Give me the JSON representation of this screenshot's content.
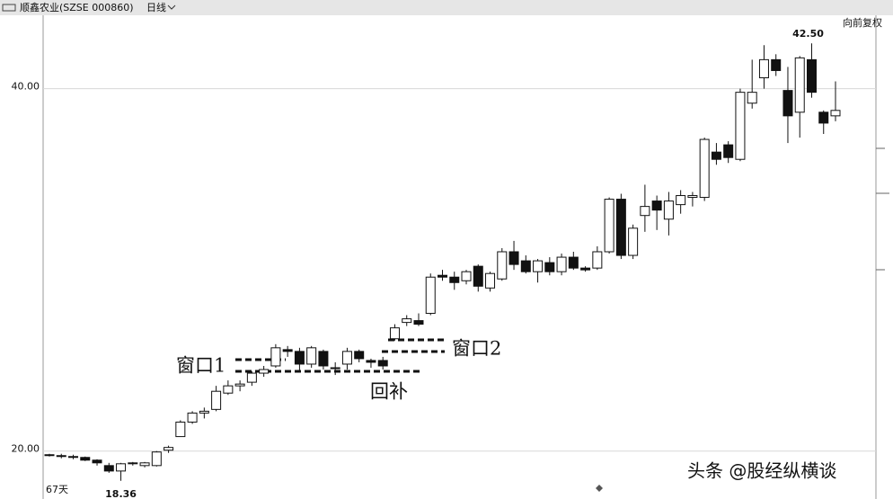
{
  "header": {
    "title": "顺鑫农业(SZSE 000860)",
    "period": "日线",
    "adjust": "向前复权"
  },
  "chart_data": {
    "type": "candlestick",
    "open": [
      19.8,
      19.75,
      19.7,
      19.65,
      19.5,
      19.2,
      18.9,
      19.3,
      19.2,
      19.2,
      20.05,
      20.8,
      21.6,
      22.1,
      22.3,
      23.2,
      23.6,
      23.8,
      24.3,
      24.7,
      25.6,
      25.5,
      24.8,
      25.5,
      24.6,
      24.8,
      25.5,
      25.0,
      25.0,
      26.2,
      27.1,
      27.2,
      27.6,
      29.7,
      29.6,
      29.4,
      30.2,
      29.0,
      29.5,
      31.0,
      30.5,
      29.9,
      30.4,
      29.9,
      30.7,
      30.1,
      30.1,
      31.0,
      33.9,
      30.8,
      33.0,
      33.8,
      32.8,
      33.6,
      34.0,
      34.0,
      36.5,
      36.9,
      36.1,
      39.2,
      40.6,
      41.6,
      39.9,
      38.7,
      41.6,
      38.7,
      38.5
    ],
    "high": [
      19.85,
      19.85,
      19.8,
      19.7,
      19.55,
      19.35,
      19.35,
      19.4,
      19.4,
      20.0,
      20.3,
      21.7,
      22.2,
      22.4,
      23.6,
      23.9,
      23.9,
      24.4,
      24.7,
      25.9,
      25.8,
      25.7,
      25.8,
      25.6,
      24.9,
      25.7,
      25.6,
      25.1,
      25.2,
      27.0,
      27.5,
      27.6,
      29.8,
      30.0,
      29.9,
      30.0,
      30.3,
      29.9,
      31.2,
      31.6,
      30.8,
      30.6,
      30.7,
      30.9,
      31.0,
      30.2,
      31.3,
      34.0,
      34.2,
      32.5,
      34.7,
      34.1,
      34.3,
      34.4,
      34.3,
      37.3,
      37.0,
      37.1,
      40.0,
      41.6,
      42.4,
      41.9,
      41.2,
      41.8,
      42.5,
      38.8,
      40.4
    ],
    "low": [
      19.7,
      19.6,
      19.55,
      19.45,
      19.2,
      18.8,
      18.36,
      19.2,
      19.1,
      19.15,
      19.9,
      20.8,
      21.5,
      21.8,
      22.2,
      23.1,
      23.3,
      23.6,
      24.1,
      24.6,
      25.2,
      24.4,
      24.6,
      24.5,
      24.2,
      24.5,
      24.9,
      24.6,
      24.5,
      26.1,
      26.9,
      26.9,
      27.5,
      29.4,
      28.9,
      29.2,
      28.8,
      28.8,
      29.4,
      30.0,
      29.8,
      29.3,
      29.7,
      29.7,
      30.0,
      29.9,
      30.0,
      30.9,
      30.6,
      30.6,
      32.1,
      32.2,
      31.9,
      33.1,
      33.5,
      33.8,
      35.8,
      35.9,
      36.0,
      38.9,
      40.0,
      40.7,
      37.0,
      37.3,
      39.5,
      37.5,
      38.2
    ],
    "close": [
      19.75,
      19.7,
      19.65,
      19.5,
      19.35,
      18.9,
      19.3,
      19.35,
      19.35,
      19.95,
      20.2,
      21.6,
      22.1,
      22.2,
      23.3,
      23.6,
      23.7,
      24.3,
      24.5,
      25.7,
      25.5,
      24.8,
      25.7,
      24.7,
      24.6,
      25.5,
      25.1,
      24.9,
      24.7,
      26.8,
      27.3,
      27.0,
      29.6,
      29.6,
      29.3,
      29.9,
      29.1,
      29.8,
      31.0,
      30.3,
      29.9,
      30.5,
      29.9,
      30.7,
      30.1,
      30.0,
      31.0,
      33.9,
      30.8,
      32.3,
      33.5,
      33.3,
      33.8,
      34.1,
      34.1,
      37.2,
      36.1,
      36.2,
      39.8,
      39.8,
      41.6,
      41.0,
      38.5,
      41.7,
      39.8,
      38.1,
      38.8
    ],
    "up_color": "#ffffff",
    "down_color": "#111111",
    "ylim": [
      18.1,
      44.0
    ],
    "yticks": [
      {
        "value": 20,
        "label": "20.00"
      },
      {
        "value": 40,
        "label": "40.00"
      }
    ],
    "grid": true,
    "max_label": {
      "value": 42.5,
      "label": "42.50"
    },
    "min_label": {
      "value": 18.36,
      "label": "18.36"
    },
    "period_label": "67天",
    "annotations": [
      "窗口1",
      "窗口2",
      "回补"
    ]
  },
  "watermark": "头条 @股经纵横谈"
}
